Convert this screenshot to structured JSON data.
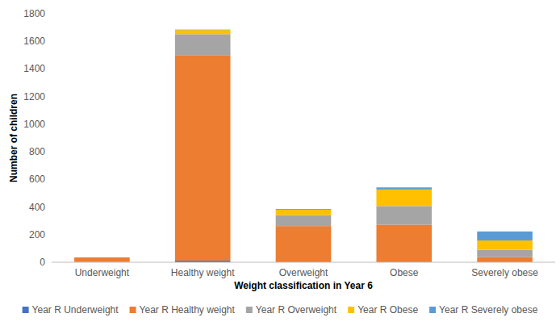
{
  "chart_data": {
    "type": "bar",
    "stacked": true,
    "x_label": "Weight classification in Year 6",
    "y_label": "Number of children",
    "categories": [
      "Underweight",
      "Healthy weight",
      "Overweight",
      "Obese",
      "Severely obese"
    ],
    "series": [
      {
        "name": "Year R Underweight",
        "color": "#4472c4",
        "values": [
          2,
          12,
          0,
          0,
          0
        ]
      },
      {
        "name": "Year R Healthy weight",
        "color": "#ed7d31",
        "values": [
          33,
          1485,
          262,
          272,
          38
        ]
      },
      {
        "name": "Year R Overweight",
        "color": "#a5a5a5",
        "values": [
          0,
          155,
          80,
          135,
          52
        ]
      },
      {
        "name": "Year R Obese",
        "color": "#ffc000",
        "values": [
          0,
          30,
          38,
          120,
          68
        ]
      },
      {
        "name": "Year R Severely obese",
        "color": "#5b9bd5",
        "values": [
          0,
          3,
          5,
          15,
          65
        ]
      }
    ],
    "ylim": [
      0,
      1800
    ],
    "yticks": [
      0,
      200,
      400,
      600,
      800,
      1000,
      1200,
      1400,
      1600,
      1800
    ],
    "grid": false,
    "legend": "bottom"
  }
}
